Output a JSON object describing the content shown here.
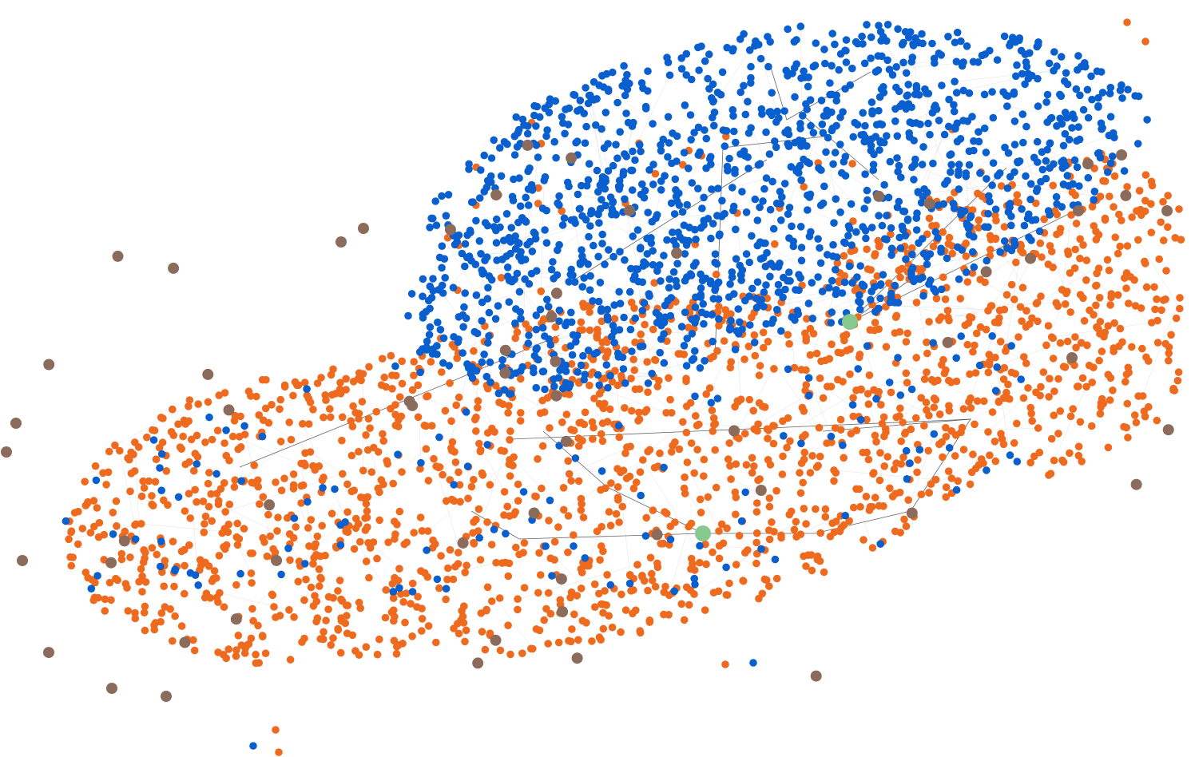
{
  "network": {
    "type": "force-directed-network",
    "colors": {
      "background": "#ffffff",
      "edge_light": "#d9d9d9",
      "edge_highlight": "#333333",
      "community_blue": "#0a5fcf",
      "community_orange": "#ee6a1e",
      "hub_brown": "#8b6b5c",
      "seed_green": "#86c98e"
    },
    "node_groups": [
      {
        "name": "blue-community",
        "color_key": "community_blue",
        "approx_count": 1500
      },
      {
        "name": "orange-community",
        "color_key": "community_orange",
        "approx_count": 2000
      },
      {
        "name": "brown-hub-nodes",
        "color_key": "hub_brown",
        "approx_count": 80
      },
      {
        "name": "green-seed-nodes",
        "color_key": "seed_green",
        "approx_count": 2
      }
    ],
    "edges": {
      "style": "dense light-gray background edges with a few dark highlighted paths"
    },
    "labels": []
  }
}
